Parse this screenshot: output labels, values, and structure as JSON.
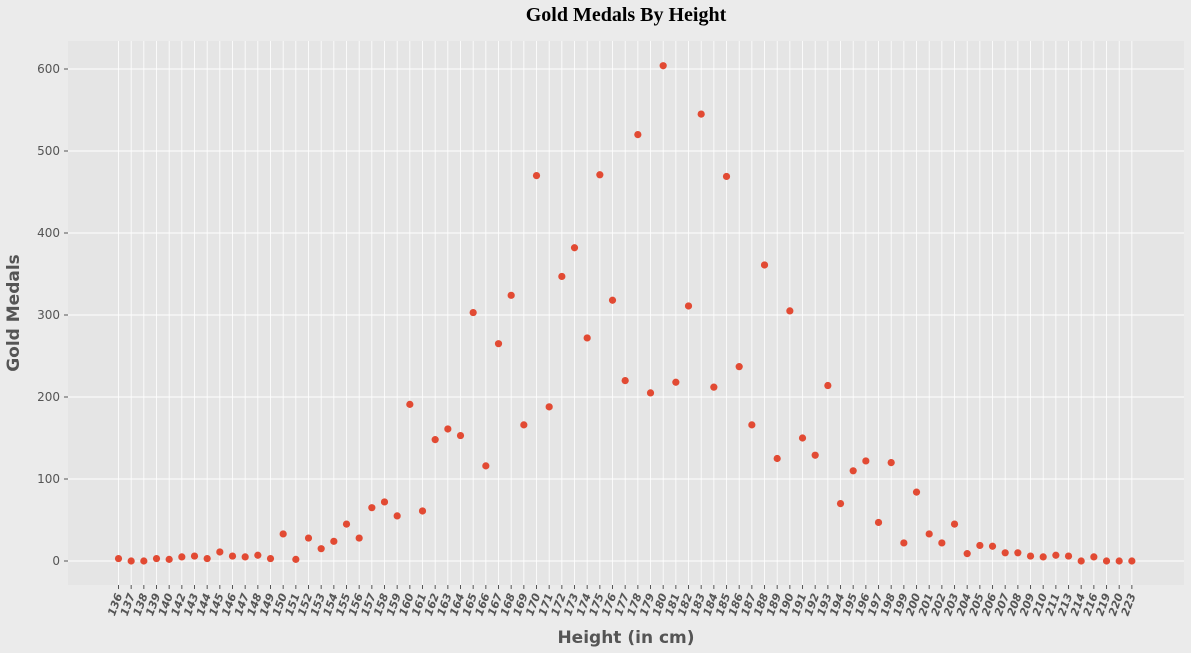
{
  "chart_data": {
    "type": "scatter",
    "title": "Gold Medals By Height",
    "xlabel": "Height (in cm)",
    "ylabel": "Gold Medals",
    "ylim": [
      0,
      600
    ],
    "yticks": [
      0,
      100,
      200,
      300,
      400,
      500,
      600
    ],
    "grid": true,
    "legend": "none",
    "marker_color": "#E24A33",
    "plot_bg": "#E5E5E5",
    "page_bg": "#EBEBEB",
    "grid_color": "#FFFFFF",
    "x": [
      "136",
      "137",
      "138",
      "139",
      "140",
      "142",
      "143",
      "144",
      "145",
      "146",
      "147",
      "148",
      "149",
      "150",
      "151",
      "152",
      "153",
      "154",
      "155",
      "156",
      "157",
      "158",
      "159",
      "160",
      "161",
      "162",
      "163",
      "164",
      "165",
      "166",
      "167",
      "168",
      "169",
      "170",
      "171",
      "172",
      "173",
      "174",
      "175",
      "176",
      "177",
      "178",
      "179",
      "180",
      "181",
      "182",
      "183",
      "184",
      "185",
      "186",
      "187",
      "188",
      "189",
      "190",
      "191",
      "192",
      "193",
      "194",
      "195",
      "196",
      "197",
      "198",
      "199",
      "200",
      "201",
      "202",
      "203",
      "204",
      "205",
      "206",
      "207",
      "208",
      "209",
      "210",
      "211",
      "213",
      "214",
      "216",
      "219",
      "220",
      "223"
    ],
    "y": [
      3,
      0,
      0,
      3,
      2,
      5,
      6,
      3,
      11,
      6,
      5,
      7,
      3,
      33,
      2,
      28,
      15,
      24,
      45,
      28,
      65,
      72,
      55,
      191,
      61,
      148,
      161,
      153,
      303,
      116,
      265,
      324,
      166,
      470,
      188,
      347,
      382,
      272,
      471,
      318,
      220,
      520,
      205,
      604,
      218,
      311,
      545,
      212,
      469,
      237,
      166,
      361,
      125,
      305,
      150,
      129,
      214,
      70,
      110,
      122,
      47,
      120,
      22,
      84,
      33,
      22,
      45,
      9,
      19,
      18,
      10,
      10,
      6,
      5,
      7,
      6,
      0,
      5,
      0,
      0,
      0
    ]
  }
}
